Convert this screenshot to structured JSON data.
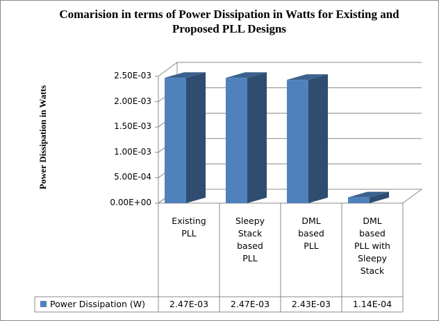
{
  "chart_data": {
    "type": "bar3d",
    "title": "Comarision in terms of Power Dissipation in Watts for Existing and Proposed PLL Designs",
    "y_label": "Power Dissipation in Watts",
    "categories": [
      "Existing PLL",
      "Sleepy Stack based PLL",
      "DML based PLL",
      "DML based PLL with Sleepy Stack"
    ],
    "series": [
      {
        "name": "Power Dissipation (W)",
        "color": "#4f81bd",
        "values": [
          0.00247,
          0.00247,
          0.00243,
          0.000114
        ],
        "value_labels": [
          "2.47E-03",
          "2.47E-03",
          "2.43E-03",
          "1.14E-04"
        ]
      }
    ],
    "ylim": [
      0,
      0.0025
    ],
    "yticks": [
      {
        "value": 0,
        "label": "0.00E+00"
      },
      {
        "value": 0.0005,
        "label": "5.00E-04"
      },
      {
        "value": 0.001,
        "label": "1.00E-03"
      },
      {
        "value": 0.0015,
        "label": "1.50E-03"
      },
      {
        "value": 0.002,
        "label": "2.00E-03"
      },
      {
        "value": 0.0025,
        "label": "2.50E-03"
      }
    ],
    "grid": true
  }
}
